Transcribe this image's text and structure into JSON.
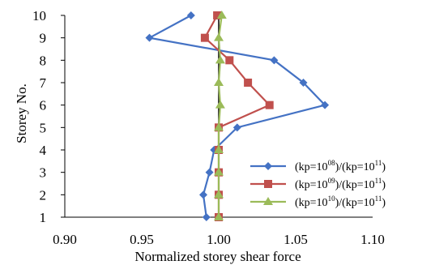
{
  "chart_data": {
    "type": "line",
    "xlabel": "Normalized storey shear force",
    "ylabel": "Storey No.",
    "xlim": [
      0.9,
      1.1
    ],
    "ylim": [
      1,
      10
    ],
    "xticks": [
      "0.90",
      "0.95",
      "1.00",
      "1.05",
      "1.10"
    ],
    "yticks": [
      "1",
      "2",
      "3",
      "4",
      "5",
      "6",
      "7",
      "8",
      "9",
      "10"
    ],
    "grid": false,
    "legend_position": "lower-right",
    "y": [
      1,
      2,
      3,
      4,
      5,
      6,
      7,
      8,
      9,
      10
    ],
    "series": [
      {
        "name": "(kp=10⁰⁸)/(kp=10¹¹)",
        "legend": {
          "prefix": "(kp=10",
          "exp": "08",
          "middle": ")/(kp=10",
          "exp2": "11",
          "suffix": ")"
        },
        "color": "#4472C4",
        "marker": "diamond",
        "x": [
          0.992,
          0.99,
          0.994,
          0.997,
          1.012,
          1.069,
          1.055,
          1.036,
          0.955,
          0.982
        ]
      },
      {
        "name": "(kp=10⁰⁹)/(kp=10¹¹)",
        "legend": {
          "prefix": "(kp=10",
          "exp": "09",
          "middle": ")/(kp=10",
          "exp2": "11",
          "suffix": ")"
        },
        "color": "#C0504D",
        "marker": "square",
        "x": [
          1.0,
          1.0,
          1.0,
          1.0,
          1.0,
          1.033,
          1.019,
          1.007,
          0.991,
          0.999
        ]
      },
      {
        "name": "(kp=10¹⁰)/(kp=10¹¹)",
        "legend": {
          "prefix": "(kp=10",
          "exp": "10",
          "middle": ")/(kp=10",
          "exp2": "11",
          "suffix": ")"
        },
        "color": "#9BBB59",
        "marker": "triangle",
        "x": [
          1.0,
          1.0,
          1.0,
          1.0,
          1.0,
          1.001,
          1.0,
          1.001,
          1.0,
          1.002
        ]
      }
    ]
  }
}
